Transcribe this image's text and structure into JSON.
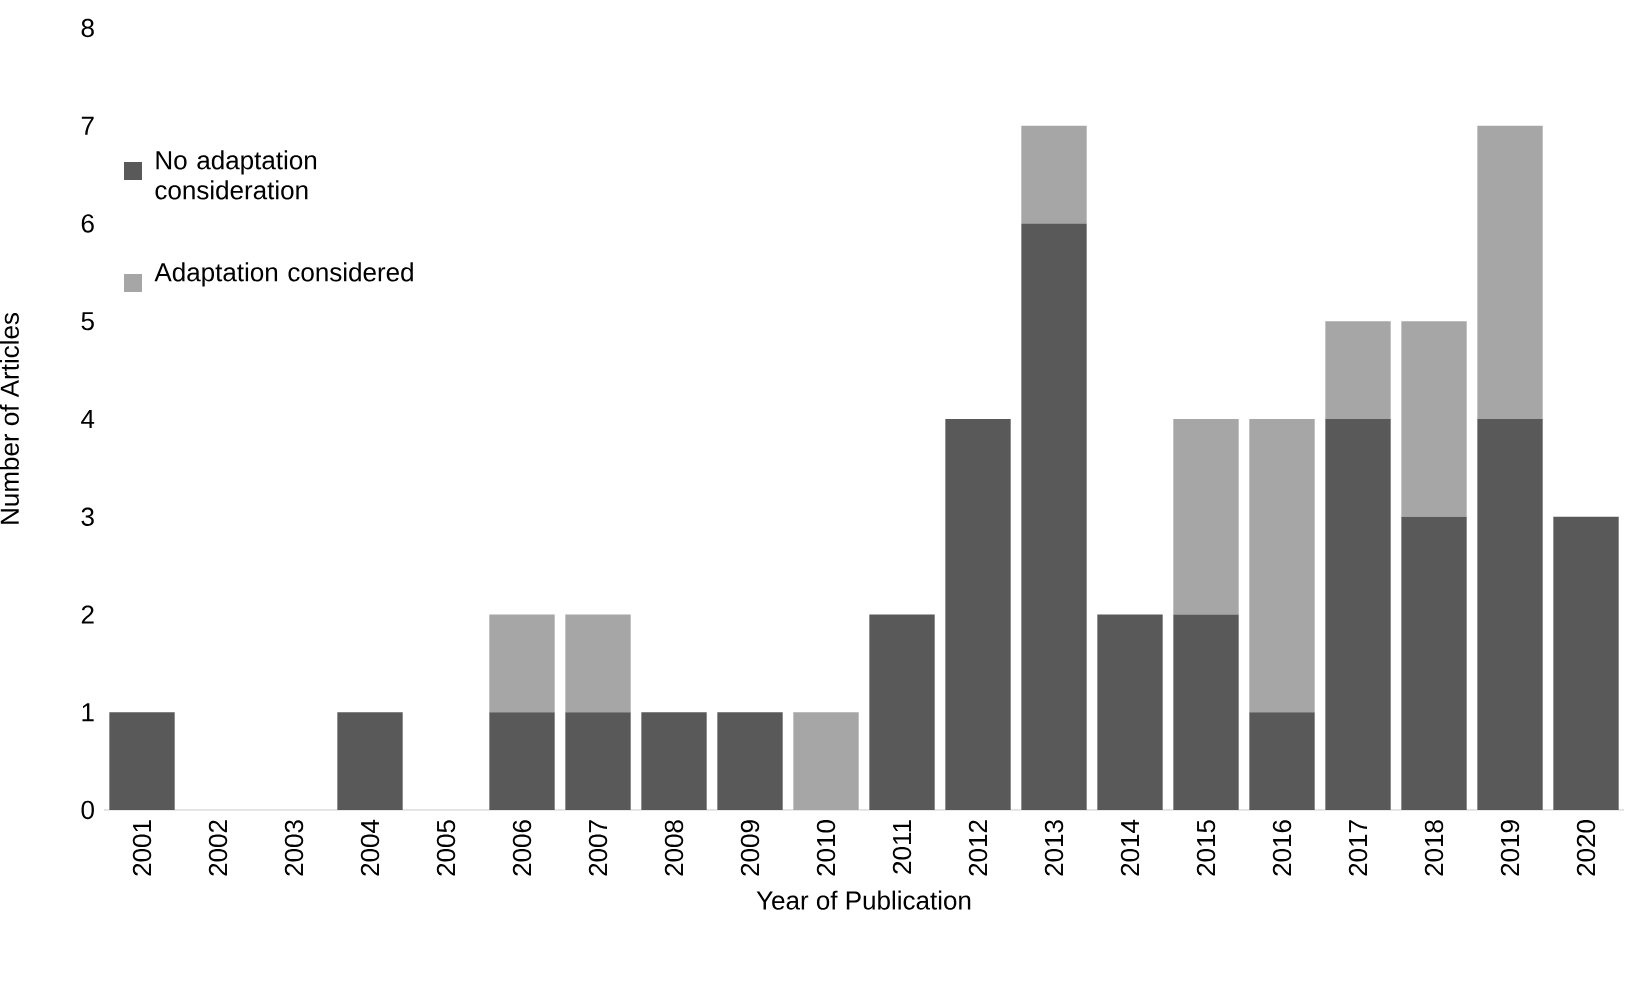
{
  "chart_data": {
    "type": "bar",
    "stacked": true,
    "xlabel": "Year of Publication",
    "ylabel": "Number of Articles",
    "categories": [
      "2001",
      "2002",
      "2003",
      "2004",
      "2005",
      "2006",
      "2007",
      "2008",
      "2009",
      "2010",
      "2011",
      "2012",
      "2013",
      "2014",
      "2015",
      "2016",
      "2017",
      "2018",
      "2019",
      "2020"
    ],
    "series": [
      {
        "name": "No adaptation consideration",
        "color": "#595959",
        "values": [
          1,
          0,
          0,
          1,
          0,
          1,
          1,
          1,
          1,
          0,
          2,
          4,
          6,
          2,
          2,
          1,
          4,
          3,
          4,
          3
        ]
      },
      {
        "name": "Adaptation considered",
        "color": "#a6a6a6",
        "values": [
          0,
          0,
          0,
          0,
          0,
          1,
          1,
          0,
          0,
          1,
          0,
          0,
          1,
          0,
          2,
          3,
          1,
          2,
          3,
          0
        ]
      }
    ],
    "ylim": [
      0,
      8
    ],
    "yticks": [
      0,
      1,
      2,
      3,
      4,
      5,
      6,
      7,
      8
    ],
    "legend": "top left",
    "grid": false
  }
}
